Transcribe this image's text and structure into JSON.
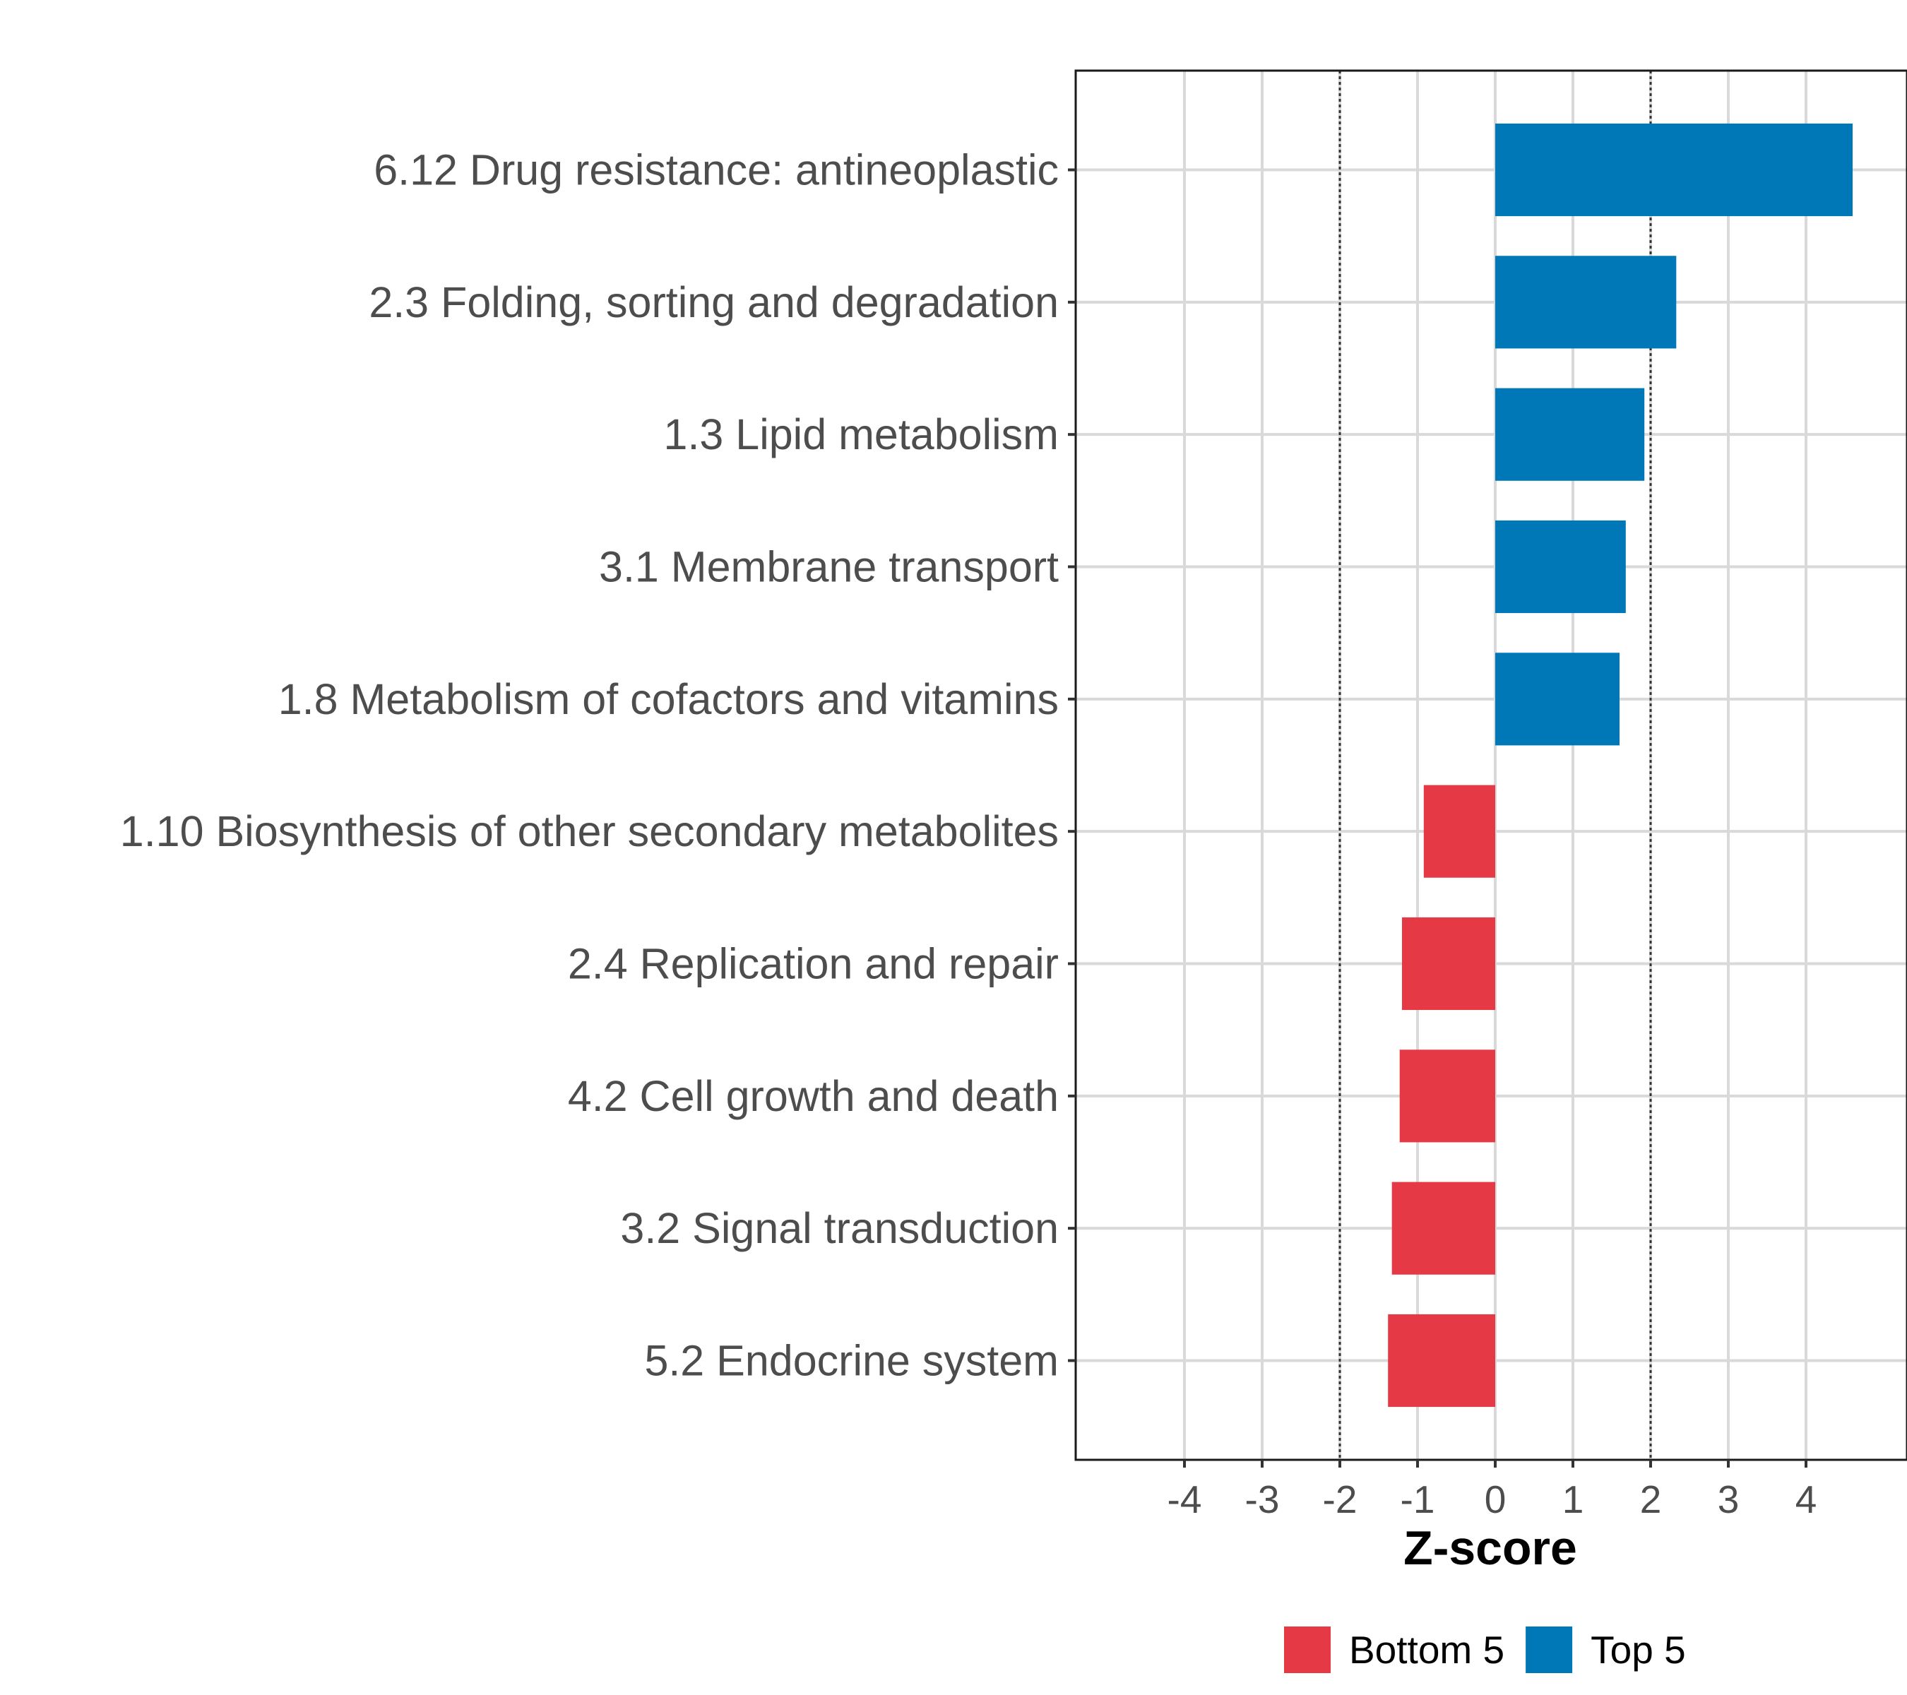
{
  "chart_data": {
    "type": "bar",
    "orientation": "horizontal",
    "title": "",
    "xlabel": "Z-score",
    "ylabel": "",
    "xlim": [
      -5.4,
      5.3
    ],
    "xticks": [
      "-4",
      "-3",
      "-2",
      "-1",
      "0",
      "1",
      "2",
      "3",
      "4"
    ],
    "reference_lines": [
      -2,
      2
    ],
    "grid": true,
    "categories": [
      "6.12 Drug resistance: antineoplastic",
      "2.3 Folding, sorting and degradation",
      "1.3 Lipid metabolism",
      "3.1 Membrane transport",
      "1.8 Metabolism of cofactors and vitamins",
      "1.10 Biosynthesis of other secondary metabolites",
      "2.4 Replication and repair",
      "4.2 Cell growth and death",
      "3.2 Signal transduction",
      "5.2 Endocrine system"
    ],
    "values": [
      4.6,
      2.33,
      1.92,
      1.68,
      1.6,
      -0.92,
      -1.2,
      -1.23,
      -1.33,
      -1.38
    ],
    "groups": [
      "Top 5",
      "Top 5",
      "Top 5",
      "Top 5",
      "Top 5",
      "Bottom 5",
      "Bottom 5",
      "Bottom 5",
      "Bottom 5",
      "Bottom 5"
    ],
    "legend": [
      {
        "name": "Bottom 5",
        "color": "#E63946"
      },
      {
        "name": "Top 5",
        "color": "#0077B6"
      }
    ],
    "legend_position": "bottom"
  }
}
